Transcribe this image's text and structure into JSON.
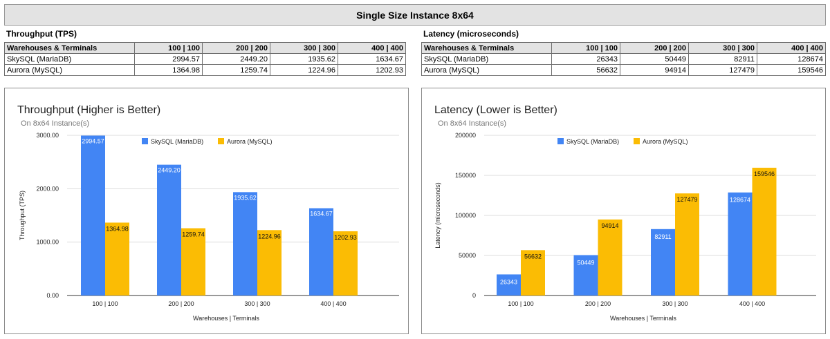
{
  "header": {
    "title": "Single Size Instance 8x64"
  },
  "tables": {
    "throughput": {
      "title": "Throughput (TPS)",
      "columns": [
        "Warehouses & Terminals",
        "100 | 100",
        "200 | 200",
        "300 | 300",
        "400 | 400"
      ],
      "rows": [
        [
          "SkySQL (MariaDB)",
          "2994.57",
          "2449.20",
          "1935.62",
          "1634.67"
        ],
        [
          "Aurora (MySQL)",
          "1364.98",
          "1259.74",
          "1224.96",
          "1202.93"
        ]
      ]
    },
    "latency": {
      "title": "Latency (microseconds)",
      "columns": [
        "Warehouses & Terminals",
        "100 | 100",
        "200 | 200",
        "300 | 300",
        "400 | 400"
      ],
      "rows": [
        [
          "SkySQL (MariaDB)",
          "26343",
          "50449",
          "82911",
          "128674"
        ],
        [
          "Aurora (MySQL)",
          "56632",
          "94914",
          "127479",
          "159546"
        ]
      ]
    }
  },
  "colors": {
    "skysql": "#4285f4",
    "aurora": "#fbbc04",
    "grid": "#dcdcdc"
  },
  "chart_data": [
    {
      "type": "bar",
      "title": "Throughput  (Higher is Better)",
      "subtitle": "On 8x64 Instance(s)",
      "xlabel": "Warehouses | Terminals",
      "ylabel": "Throughput (TPS)",
      "categories": [
        "100 | 100",
        "200 | 200",
        "300 | 300",
        "400 | 400"
      ],
      "series": [
        {
          "name": "SkySQL (MariaDB)",
          "values": [
            2994.57,
            2449.2,
            1935.62,
            1634.67
          ],
          "labels": [
            "2994.57",
            "2449.20",
            "1935.62",
            "1634.67"
          ]
        },
        {
          "name": "Aurora (MySQL)",
          "values": [
            1364.98,
            1259.74,
            1224.96,
            1202.93
          ],
          "labels": [
            "1364.98",
            "1259.74",
            "1224.96",
            "1202.93"
          ]
        }
      ],
      "ylim": [
        0,
        3000
      ],
      "yticks": [
        0,
        1000,
        2000,
        3000
      ],
      "ytick_labels": [
        "0.00",
        "1000.00",
        "2000.00",
        "3000.00"
      ],
      "grid": true,
      "legend": "top"
    },
    {
      "type": "bar",
      "title": "Latency (Lower is Better)",
      "subtitle": "On 8x64 Instance(s)",
      "xlabel": "Warehouses | Terminals",
      "ylabel": "Latency (microseconds)",
      "categories": [
        "100 | 100",
        "200 | 200",
        "300 | 300",
        "400 | 400"
      ],
      "series": [
        {
          "name": "SkySQL (MariaDB)",
          "values": [
            26343,
            50449,
            82911,
            128674
          ],
          "labels": [
            "26343",
            "50449",
            "82911",
            "128674"
          ]
        },
        {
          "name": "Aurora (MySQL)",
          "values": [
            56632,
            94914,
            127479,
            159546
          ],
          "labels": [
            "56632",
            "94914",
            "127479",
            "159546"
          ]
        }
      ],
      "ylim": [
        0,
        200000
      ],
      "yticks": [
        0,
        50000,
        100000,
        150000,
        200000
      ],
      "ytick_labels": [
        "0",
        "50000",
        "100000",
        "150000",
        "200000"
      ],
      "grid": true,
      "legend": "top"
    }
  ]
}
